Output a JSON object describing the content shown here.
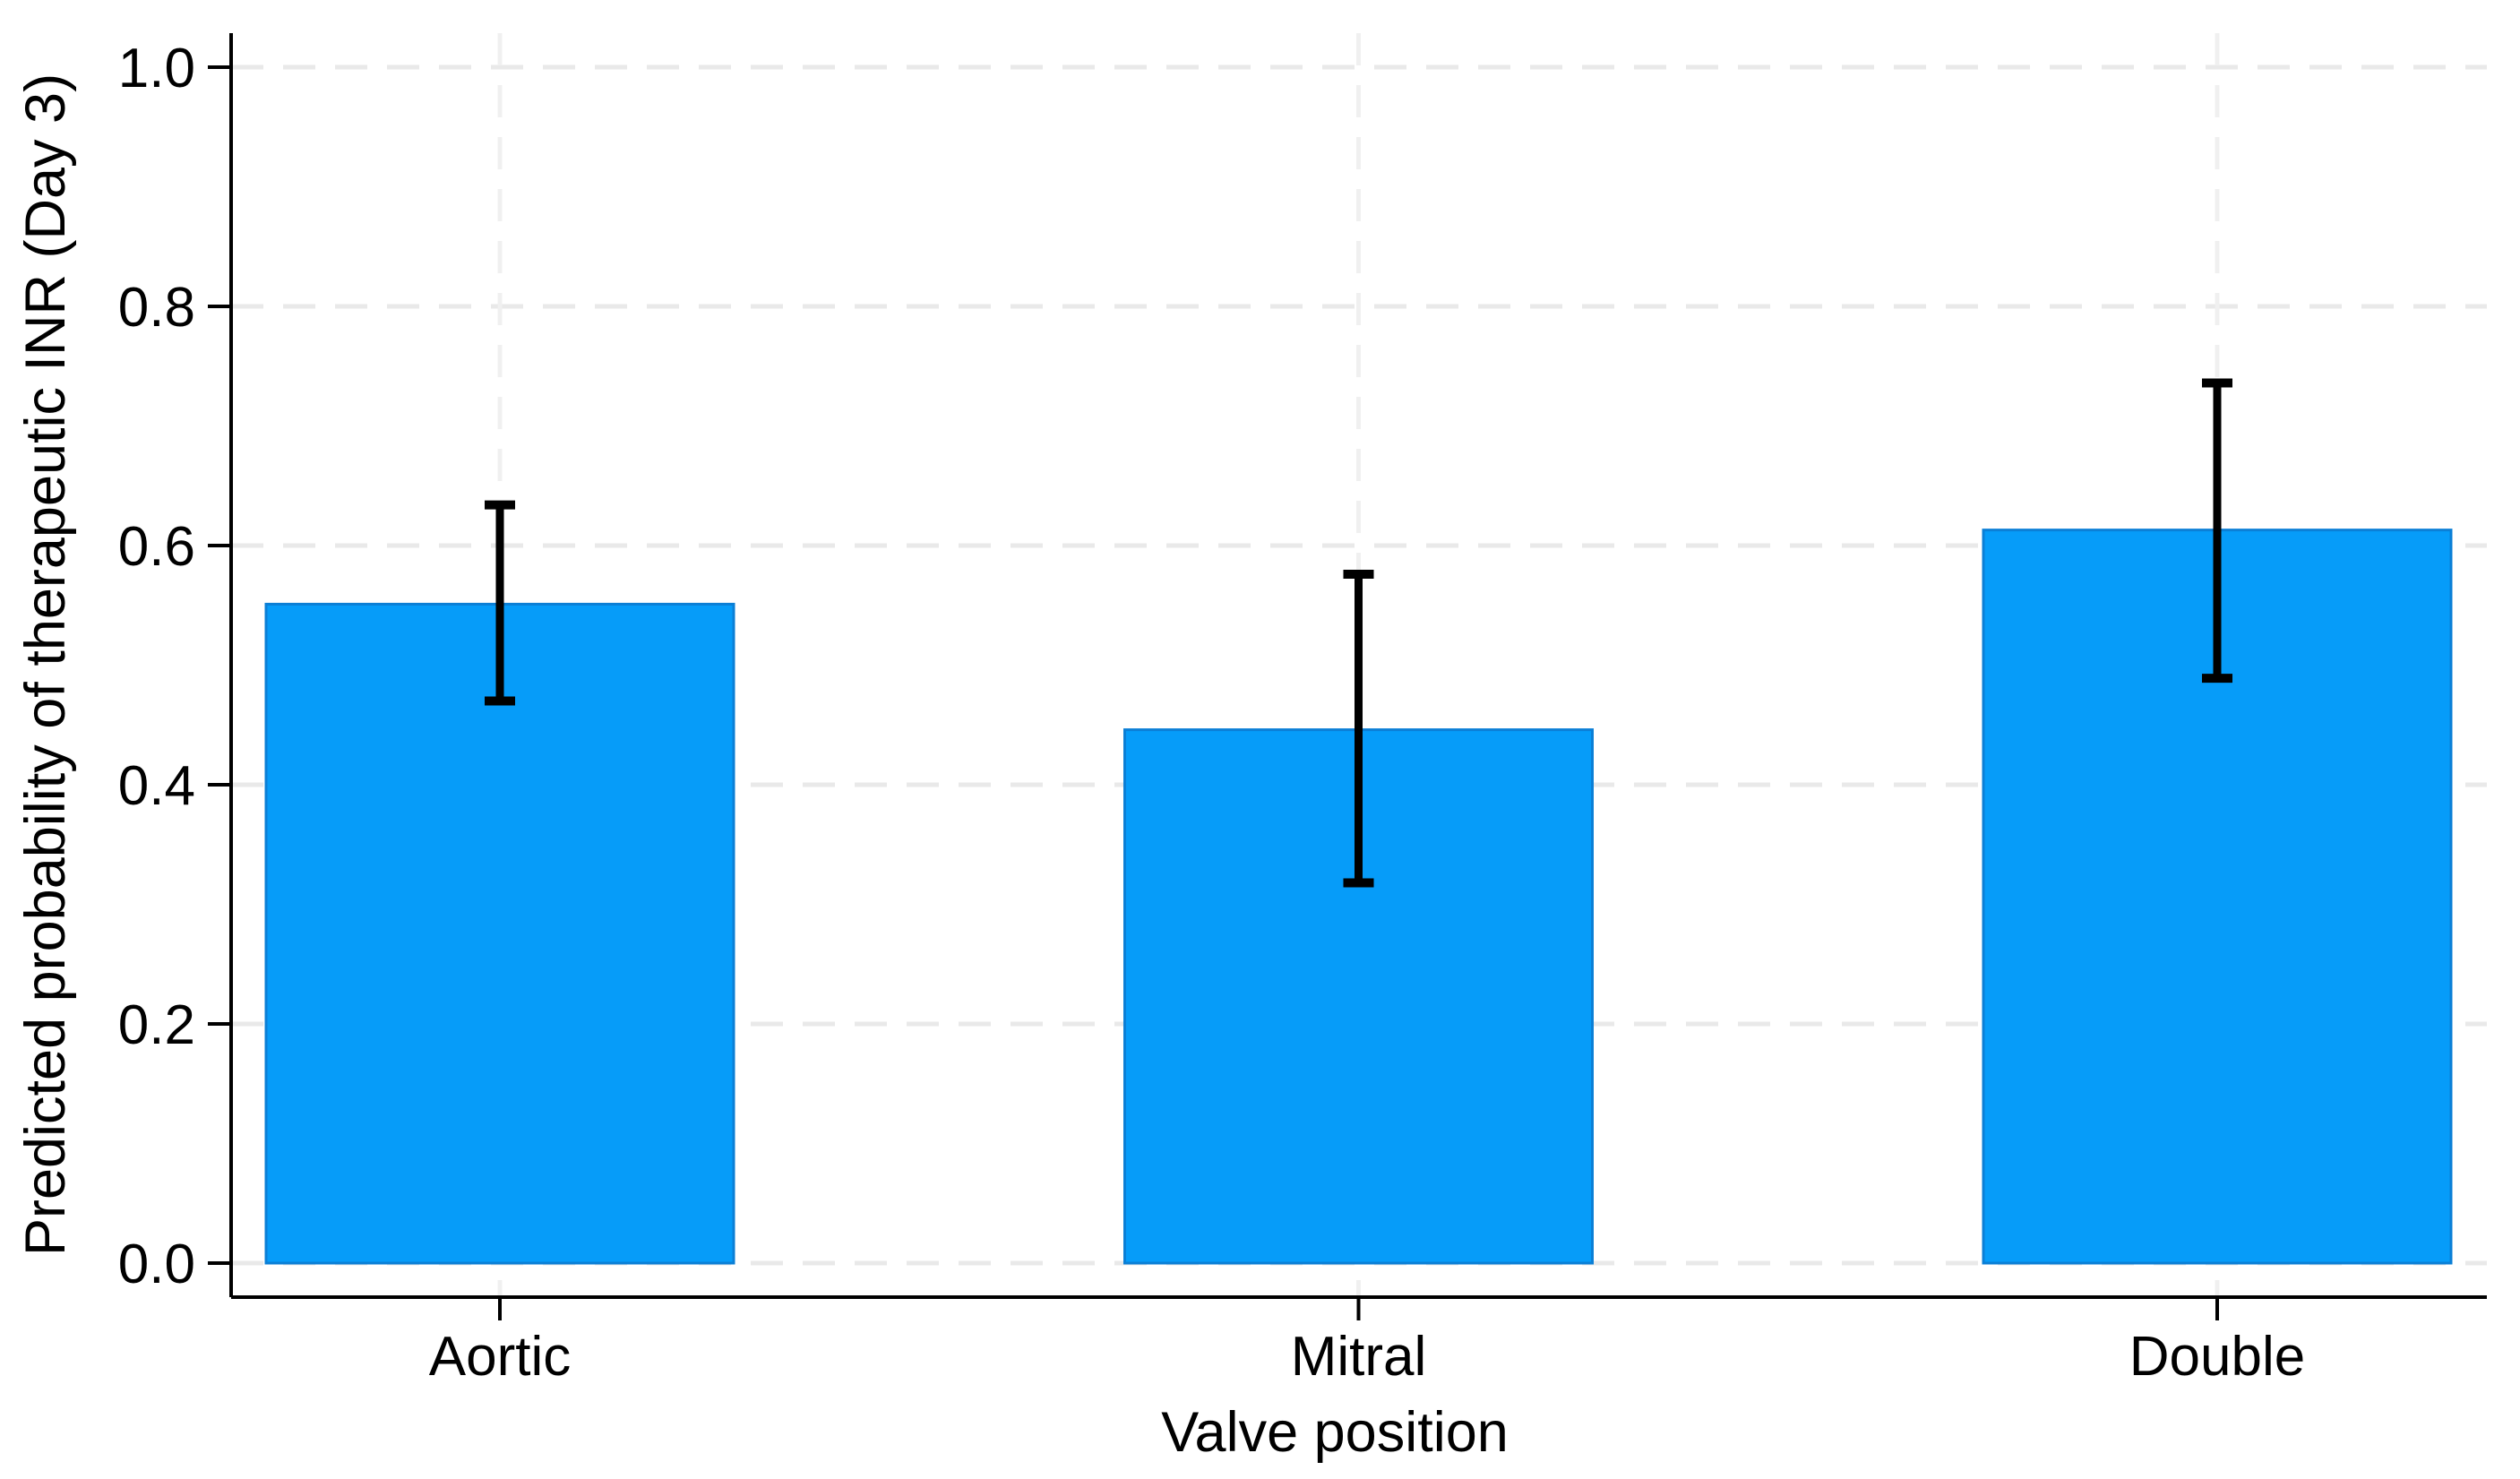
{
  "chart_data": {
    "type": "bar",
    "title": "",
    "categories": [
      "Aortic",
      "Mitral",
      "Double"
    ],
    "series": [
      {
        "name": "Predicted probability of therapeutic INR (Day 3)",
        "values": [
          0.551,
          0.446,
          0.613
        ]
      }
    ],
    "error_bars": {
      "low": [
        0.47,
        0.318,
        0.489
      ],
      "high": [
        0.634,
        0.576,
        0.736
      ]
    },
    "xlabel": "Valve position",
    "ylabel": "Predicted probability of therapeutic INR (Day 3)",
    "ylim": [
      0.0,
      1.0
    ],
    "yticks": [
      0.0,
      0.2,
      0.4,
      0.6,
      0.8,
      1.0
    ],
    "ytick_labels": [
      "0.0",
      "0.2",
      "0.4",
      "0.6",
      "0.8",
      "1.0"
    ],
    "grid": {
      "horizontal": true,
      "vertical_at_categories": true,
      "style": "dashed"
    },
    "legend": "none",
    "colors": {
      "bar_fill": "#069CF9",
      "bar_stroke": "#0B7FD6",
      "error_bar": "#000000",
      "grid_horizontal": "#E9E9E9",
      "grid_vertical": "#F0F0F0",
      "axis": "#000000",
      "text": "#000000",
      "background": "#FFFFFF"
    }
  }
}
